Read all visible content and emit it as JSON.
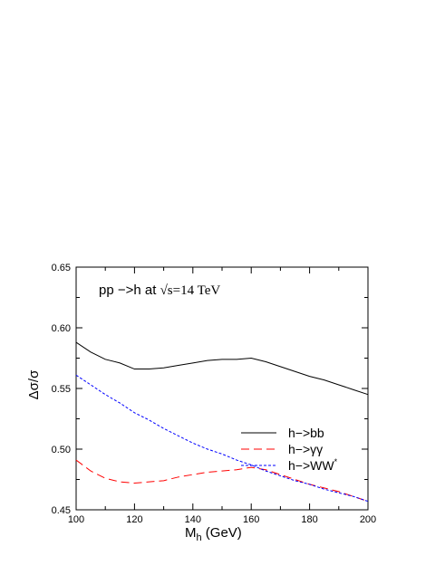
{
  "chart_data": {
    "type": "line",
    "title": "",
    "annotation": {
      "prefix": "pp −>h at ",
      "sqrt": "√",
      "rest": "s=14 TeV"
    },
    "xlabel": {
      "main": "M",
      "sub": "h",
      "rest": " (GeV)"
    },
    "ylabel": "Δσ/σ",
    "xlim": [
      100,
      200
    ],
    "ylim": [
      0.45,
      0.65
    ],
    "x_ticks": [
      100,
      120,
      140,
      160,
      180,
      200
    ],
    "x_tick_labels": [
      "100",
      "120",
      "140",
      "160",
      "180",
      "200"
    ],
    "y_ticks": [
      0.45,
      0.5,
      0.55,
      0.6,
      0.65
    ],
    "y_tick_labels": [
      "0.45",
      "0.50",
      "0.55",
      "0.60",
      "0.65"
    ],
    "grid": false,
    "legend_position": "right",
    "series": [
      {
        "name": "h−>bb",
        "color": "#000000",
        "dash": "solid",
        "x": [
          100,
          105,
          110,
          115,
          120,
          125,
          130,
          135,
          140,
          145,
          150,
          155,
          160,
          165,
          170,
          175,
          180,
          185,
          190,
          195,
          200
        ],
        "y": [
          0.588,
          0.58,
          0.574,
          0.571,
          0.566,
          0.566,
          0.567,
          0.569,
          0.571,
          0.573,
          0.574,
          0.574,
          0.575,
          0.572,
          0.568,
          0.564,
          0.56,
          0.557,
          0.553,
          0.549,
          0.545
        ]
      },
      {
        "name": "h−>γγ",
        "color": "#ff0000",
        "dash": "long-dash",
        "x": [
          100,
          105,
          110,
          115,
          120,
          125,
          130,
          135,
          140,
          145,
          150,
          155,
          160,
          165,
          170,
          175,
          180,
          185,
          190,
          195,
          200
        ],
        "y": [
          0.491,
          0.482,
          0.476,
          0.473,
          0.472,
          0.473,
          0.474,
          0.477,
          0.479,
          0.481,
          0.482,
          0.483,
          0.485,
          0.483,
          0.479,
          0.475,
          0.471,
          0.468,
          0.465,
          0.461,
          0.457
        ]
      },
      {
        "name": "h−>WW",
        "name_sup": "*",
        "color": "#0000ff",
        "dash": "short-dash",
        "x": [
          100,
          105,
          110,
          115,
          120,
          125,
          130,
          135,
          140,
          145,
          150,
          155,
          160,
          165,
          170,
          175,
          180,
          185,
          190,
          195,
          200
        ],
        "y": [
          0.561,
          0.553,
          0.545,
          0.538,
          0.53,
          0.524,
          0.517,
          0.511,
          0.505,
          0.5,
          0.496,
          0.491,
          0.487,
          0.482,
          0.478,
          0.474,
          0.471,
          0.467,
          0.464,
          0.461,
          0.457
        ]
      }
    ]
  }
}
